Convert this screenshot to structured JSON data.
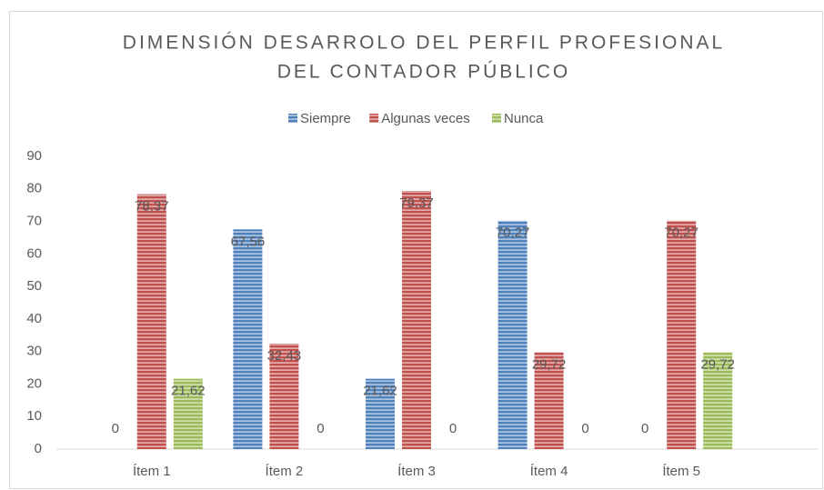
{
  "chart_data": {
    "type": "bar",
    "title": [
      "DIMENSIÓN DESARROLO DEL PERFIL PROFESIONAL",
      "DEL CONTADOR PÚBLICO"
    ],
    "categories": [
      "Ítem 1",
      "Ítem 2",
      "Ítem 3",
      "Ítem 4",
      "Ítem 5"
    ],
    "series": [
      {
        "name": "Siempre",
        "color": "#4f81bd",
        "values": [
          0,
          67.56,
          21.62,
          70.27,
          0
        ],
        "value_labels": [
          "0",
          "67,56",
          "21,62",
          "70,27",
          "0"
        ]
      },
      {
        "name": "Algunas veces",
        "color": "#c0504d",
        "values": [
          78.37,
          32.43,
          79.37,
          29.72,
          70.27
        ],
        "value_labels": [
          "78,37",
          "32,43",
          "79,37",
          "29,72",
          "70,27"
        ]
      },
      {
        "name": "Nunca",
        "color": "#9bbb59",
        "values": [
          21.62,
          0,
          0,
          0,
          29.72
        ],
        "value_labels": [
          "21,62",
          "0",
          "0",
          "0",
          "29,72"
        ]
      }
    ],
    "ylim": [
      0,
      90
    ],
    "yticks": [
      0,
      10,
      20,
      30,
      40,
      50,
      60,
      70,
      80,
      90
    ],
    "grid": false,
    "legend": "top"
  }
}
